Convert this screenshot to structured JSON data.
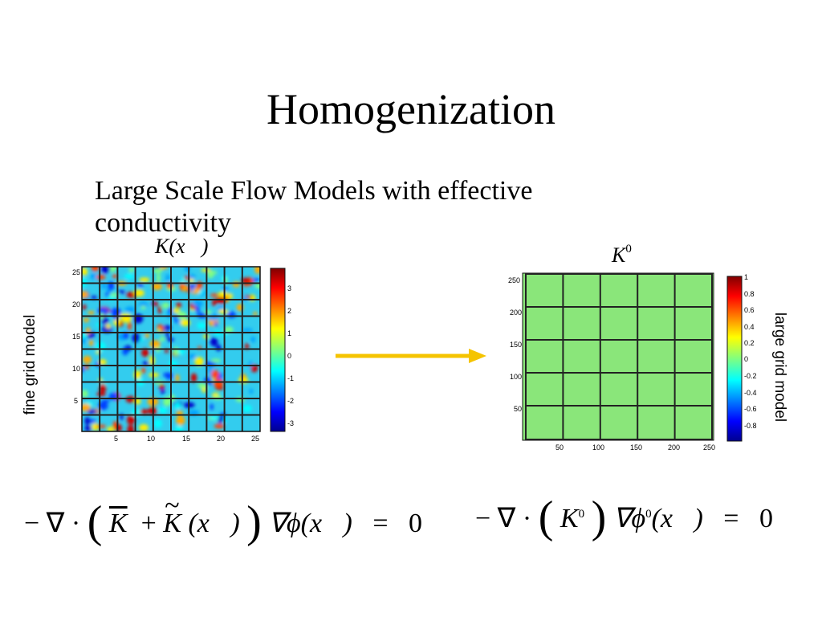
{
  "title": "Homogenization",
  "subtitle": "Large Scale Flow Models with effective conductivity",
  "fine_panel": {
    "symbol": "K(x⃗)",
    "side_label": "fine grid model",
    "x_ticks": [
      "5",
      "10",
      "15",
      "20",
      "25"
    ],
    "y_ticks": [
      "25",
      "20",
      "15",
      "10",
      "5"
    ],
    "colorbar_ticks": [
      "3",
      "2",
      "1",
      "0",
      "-1",
      "-2",
      "-3"
    ]
  },
  "large_panel": {
    "symbol_base": "K",
    "symbol_sup": "0",
    "side_label": "large grid model",
    "x_ticks": [
      "50",
      "100",
      "150",
      "200",
      "250"
    ],
    "y_ticks": [
      "250",
      "200",
      "150",
      "100",
      "50"
    ],
    "colorbar_ticks": [
      "1",
      "0.8",
      "0.6",
      "0.4",
      "0.2",
      "0",
      "-0.2",
      "-0.4",
      "-0.6",
      "-0.8"
    ]
  },
  "equation_left": {
    "lead": "− ∇ ·",
    "kbar": "K",
    "plus": "+",
    "ktilde": "K",
    "arg": "(x⃗)",
    "grad": "∇ϕ(x⃗)",
    "eq": "=",
    "rhs": "0"
  },
  "equation_right": {
    "lead": "− ∇ ·",
    "k": "K",
    "k_sup": "0",
    "grad": "∇ϕ",
    "phi_sup": "0",
    "arg": "(x⃗)",
    "eq": "=",
    "rhs": "0"
  },
  "colors": {
    "arrow": "#f5c400",
    "uniform_field": "#8ae67a",
    "grid_lines": "#222222"
  }
}
